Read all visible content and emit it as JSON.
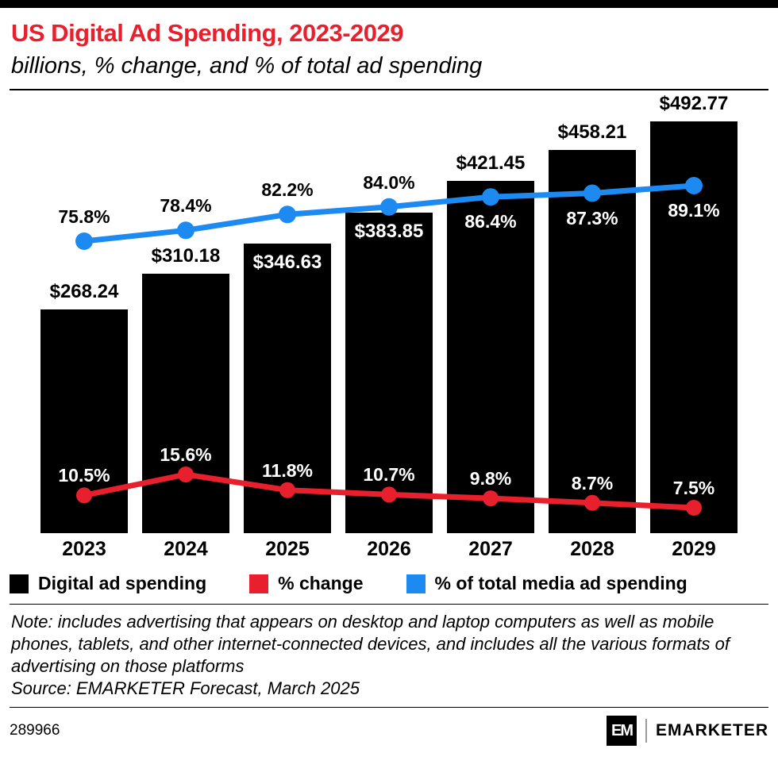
{
  "header": {
    "title": "US Digital Ad Spending, 2023-2029",
    "subtitle": "billions, % change, and % of total ad spending"
  },
  "colors": {
    "red": "#e8202d",
    "blue": "#1d8af2",
    "black": "#000000"
  },
  "chart_data": {
    "type": "bar+line",
    "title": "US Digital Ad Spending, 2023-2029",
    "subtitle": "billions, % change, and % of total ad spending",
    "categories": [
      "2023",
      "2024",
      "2025",
      "2026",
      "2027",
      "2028",
      "2029"
    ],
    "series": [
      {
        "name": "Digital ad spending",
        "type": "bar",
        "unit": "billions USD",
        "color": "#000000",
        "values": [
          268.24,
          310.18,
          346.63,
          383.85,
          421.45,
          458.21,
          492.77
        ],
        "labels": [
          "$268.24",
          "$310.18",
          "$346.63",
          "$383.85",
          "$421.45",
          "$458.21",
          "$492.77"
        ]
      },
      {
        "name": "% change",
        "type": "line",
        "unit": "%",
        "color": "#e8202d",
        "values": [
          10.5,
          15.6,
          11.8,
          10.7,
          9.8,
          8.7,
          7.5
        ],
        "labels": [
          "10.5%",
          "15.6%",
          "11.8%",
          "10.7%",
          "9.8%",
          "8.7%",
          "7.5%"
        ]
      },
      {
        "name": "% of total media ad spending",
        "type": "line",
        "unit": "%",
        "color": "#1d8af2",
        "values": [
          75.8,
          78.4,
          82.2,
          84.0,
          86.4,
          87.3,
          89.1
        ],
        "labels": [
          "75.8%",
          "78.4%",
          "82.2%",
          "84.0%",
          "86.4%",
          "87.3%",
          "89.1%"
        ]
      }
    ],
    "grid": false,
    "legend_position": "bottom"
  },
  "legend": [
    {
      "label": "Digital ad spending",
      "color": "#000000"
    },
    {
      "label": "% change",
      "color": "#e8202d"
    },
    {
      "label": "% of total media ad spending",
      "color": "#1d8af2"
    }
  ],
  "footnote": {
    "note": "Note: includes advertising that appears on desktop and laptop computers as well as mobile phones, tablets, and other internet-connected devices, and includes all the various formats of advertising on those platforms",
    "source": "Source: EMARKETER Forecast, March 2025"
  },
  "footer": {
    "chart_id": "289966",
    "logo_text": "EM",
    "brand": "EMARKETER"
  }
}
